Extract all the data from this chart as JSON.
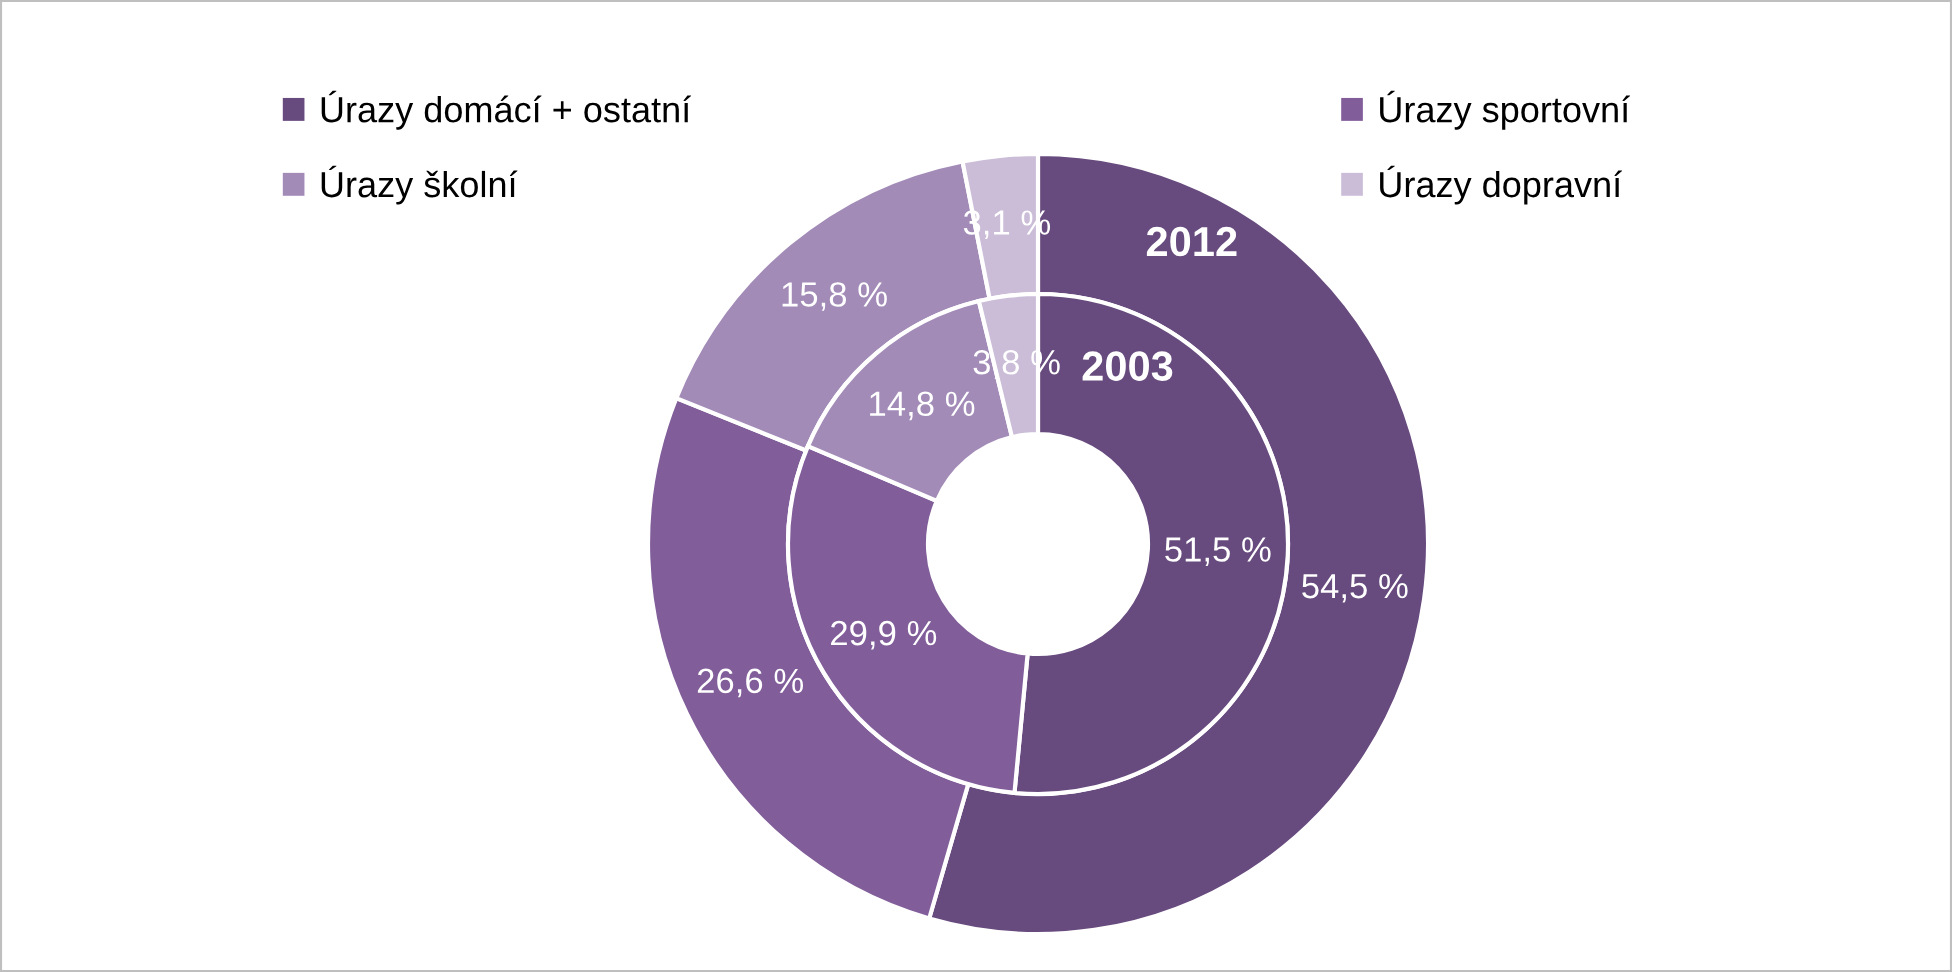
{
  "chart_data": {
    "type": "donut",
    "categories": [
      "Úrazy domácí + ostatní",
      "Úrazy sportovní",
      "Úrazy školní",
      "Úrazy dopravní"
    ],
    "colors": [
      "#684b7e",
      "#815d9a",
      "#a38bb8",
      "#cbbdd8"
    ],
    "series": [
      {
        "name": "2012",
        "values": [
          54.5,
          26.6,
          15.8,
          3.1
        ],
        "value_labels": [
          "54,5 %",
          "26,6 %",
          "15,8 %",
          "3,1 %"
        ]
      },
      {
        "name": "2003",
        "values": [
          51.5,
          29.9,
          14.8,
          3.8
        ],
        "value_labels": [
          "51,5 %",
          "29,9 %",
          "14,8 %",
          "3,8 %"
        ]
      }
    ],
    "legend": "top"
  }
}
